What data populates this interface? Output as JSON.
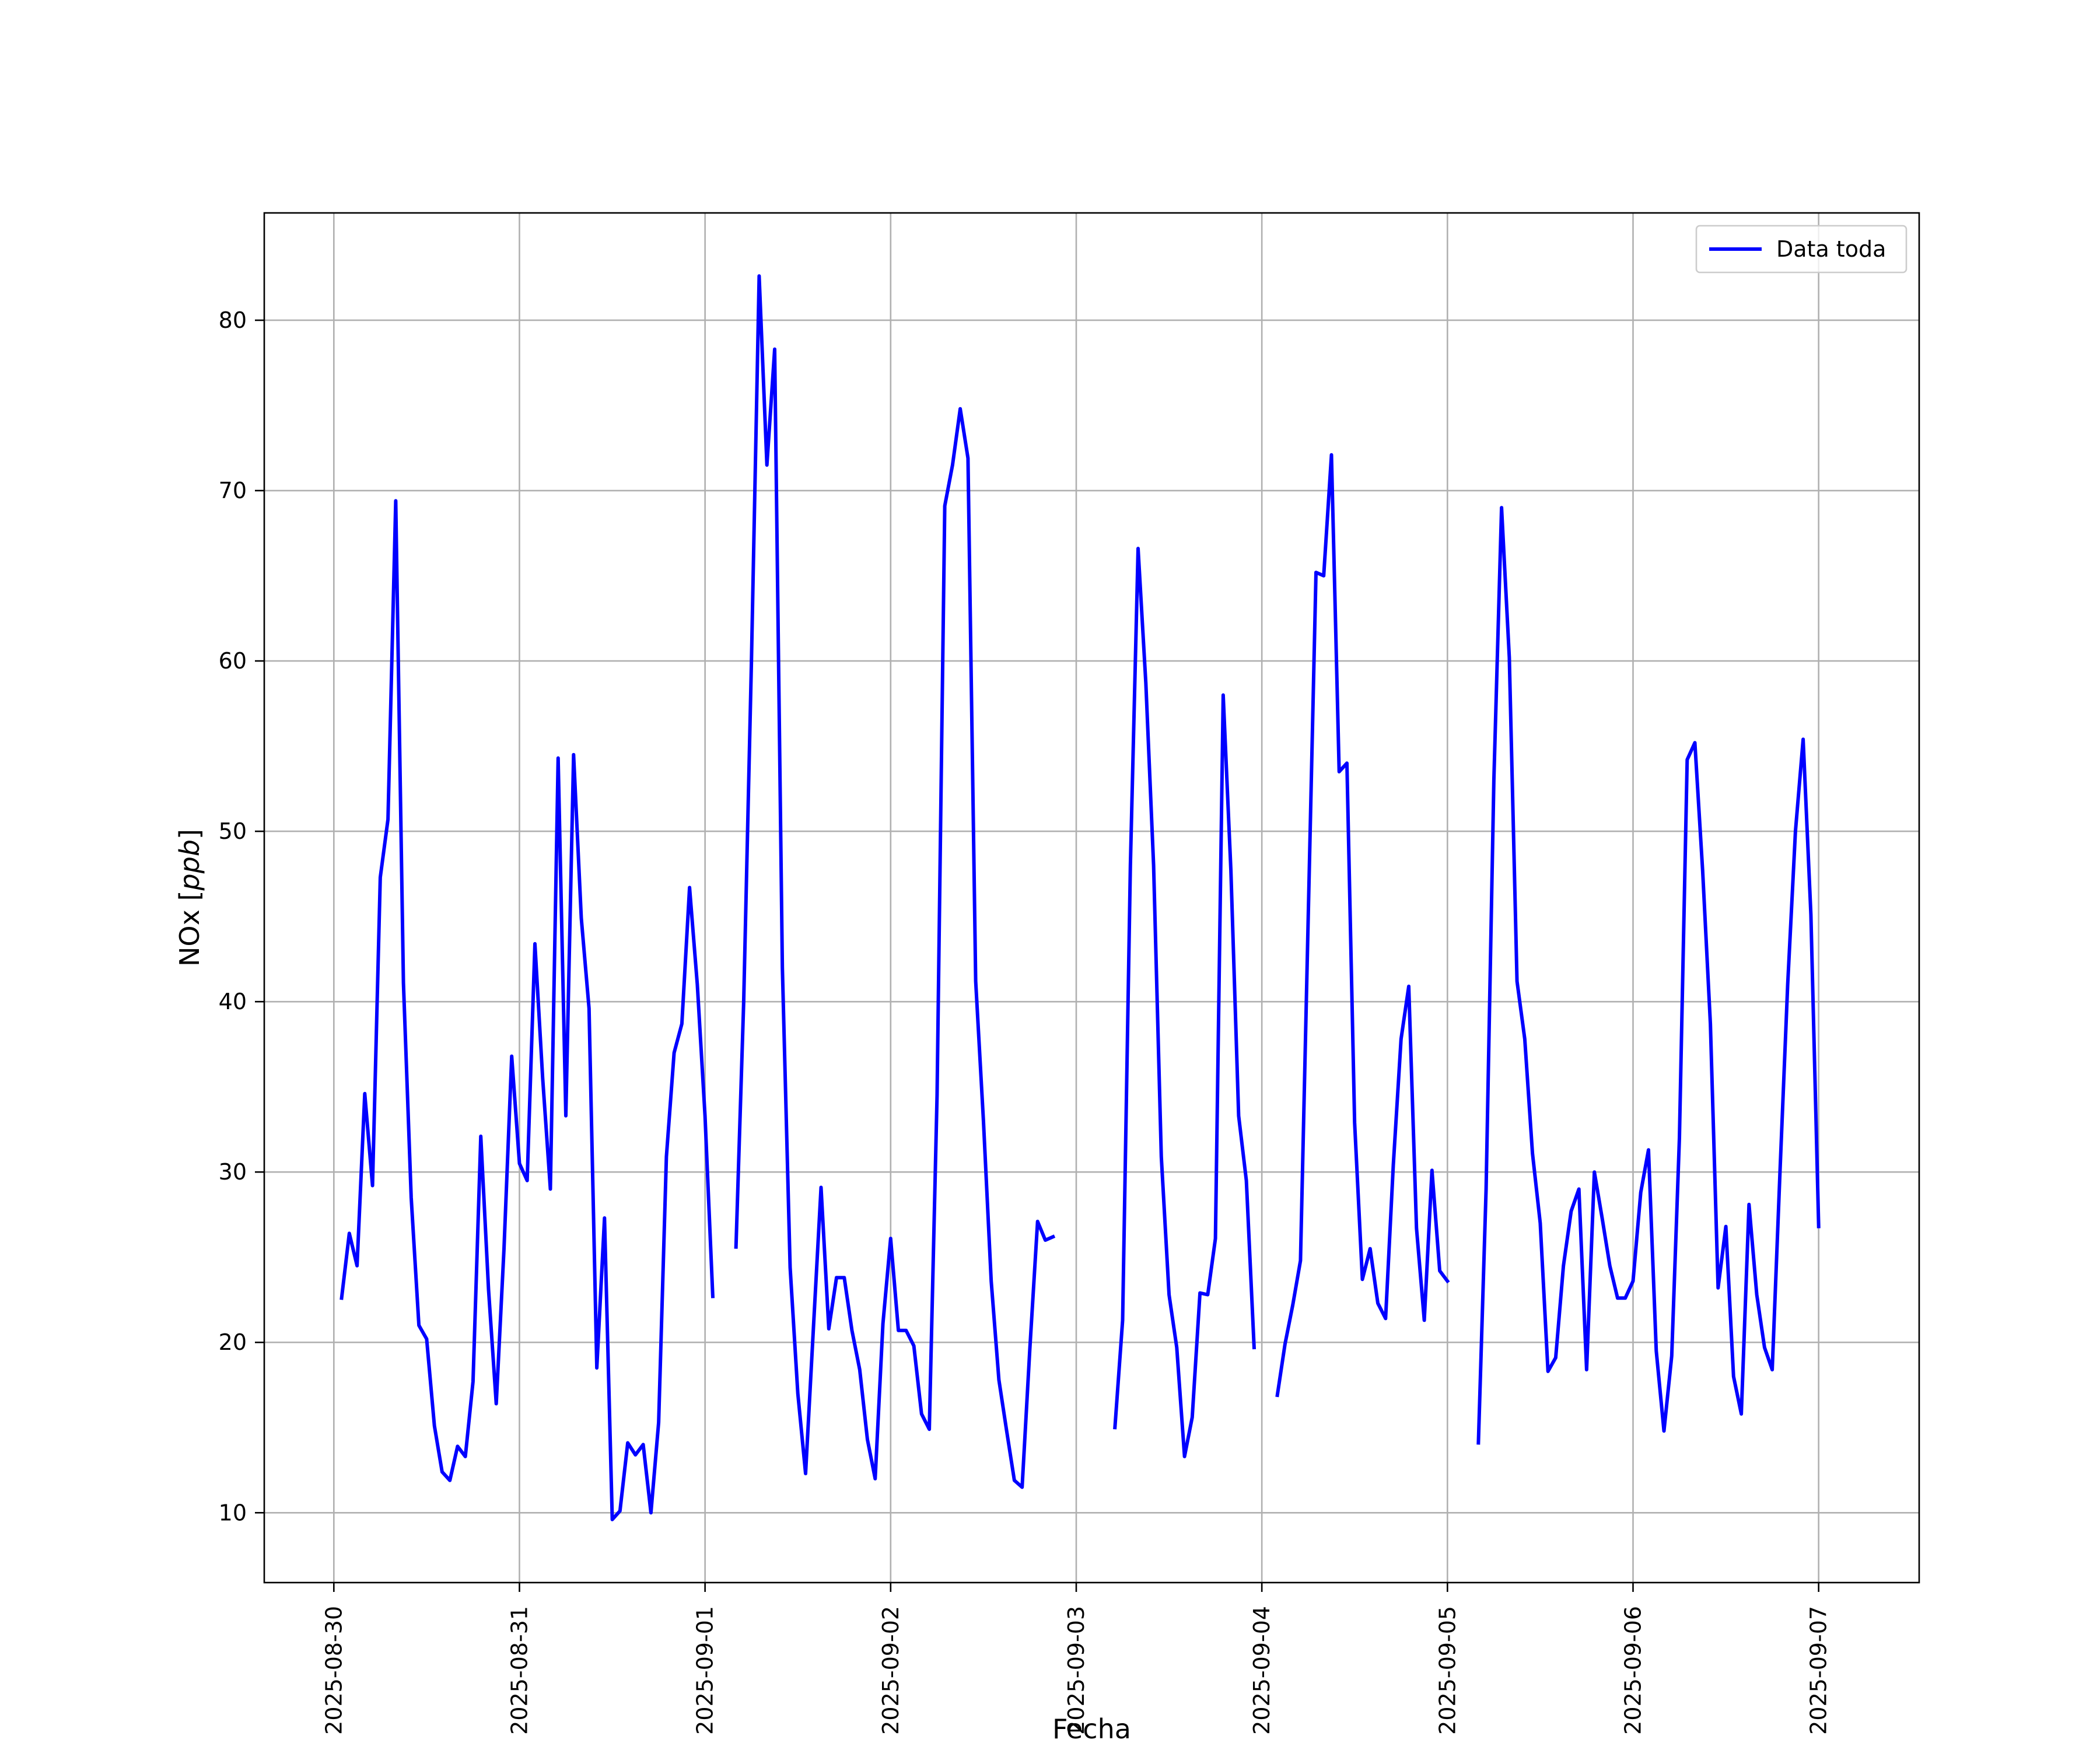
{
  "chart_data": {
    "type": "line",
    "xlabel": "Fecha",
    "ylabel": "NOx [ppb]",
    "ylabel_parts": {
      "main": "NOx [",
      "unit": "ppb",
      "end": "]"
    },
    "xlim": [
      "2025-08-29T15:00",
      "2025-09-07T13:00"
    ],
    "ylim": [
      5.9,
      86.3
    ],
    "x_ticks": [
      "2025-08-30",
      "2025-08-31",
      "2025-09-01",
      "2025-09-02",
      "2025-09-03",
      "2025-09-04",
      "2025-09-05",
      "2025-09-06",
      "2025-09-07"
    ],
    "y_ticks": [
      10,
      20,
      30,
      40,
      50,
      60,
      70,
      80
    ],
    "y_tick_labels": [
      "10",
      "20",
      "30",
      "40",
      "50",
      "60",
      "70",
      "80"
    ],
    "grid": true,
    "legend_position": "upper-right",
    "series": [
      {
        "name": "Data toda",
        "color": "#0000ff",
        "segments": [
          {
            "start": "2025-08-30T01:00",
            "step_hours": 1,
            "values": [
              22.6,
              26.4,
              24.5,
              34.6,
              29.2,
              47.3,
              50.7,
              69.4,
              41.1,
              28.5,
              21.0,
              20.2,
              15.1,
              12.4,
              11.9,
              13.9,
              13.3,
              17.7,
              32.1,
              23.1,
              16.4,
              25.5,
              36.8,
              30.5,
              29.5,
              43.4,
              35.5,
              29.0,
              54.3,
              33.3,
              54.5,
              44.9,
              39.6,
              18.5,
              27.3,
              9.6,
              10.1,
              14.1,
              13.4,
              14.0,
              10.0,
              15.3,
              30.9,
              37.0,
              38.7,
              46.7,
              41.0,
              33.3,
              22.7
            ]
          },
          {
            "start": "2025-09-01T04:00",
            "step_hours": 1,
            "values": [
              25.6,
              40.0,
              60.0,
              82.6,
              71.5,
              78.3,
              42.0,
              24.4,
              17.0,
              12.3,
              20.7,
              29.1,
              20.8,
              23.8,
              23.8,
              20.7,
              18.4,
              14.3,
              12.0,
              21.1,
              26.1,
              20.7,
              20.7,
              19.8,
              15.8,
              14.9,
              34.5,
              69.1,
              71.5,
              74.8,
              71.9,
              41.2,
              33.0,
              23.6,
              17.8,
              14.8,
              11.9,
              11.5,
              19.6,
              27.1,
              26.0,
              26.2
            ]
          },
          {
            "start": "2025-09-03T05:00",
            "step_hours": 1,
            "values": [
              15.0,
              21.3,
              48.0,
              66.6,
              58.7,
              48.0,
              30.9,
              22.8,
              19.7,
              13.3,
              15.6,
              22.9,
              22.8,
              26.1,
              58.0,
              47.7,
              33.3,
              29.5,
              19.7
            ]
          },
          {
            "start": "2025-09-04T02:00",
            "step_hours": 1,
            "values": [
              16.9,
              19.9,
              22.2,
              24.8,
              45.0,
              65.2,
              65.0,
              72.1,
              53.5,
              54.0,
              32.9,
              23.7,
              25.5,
              22.3,
              21.4,
              30.4,
              37.8,
              40.9,
              26.7,
              21.3,
              30.1,
              24.2,
              23.6
            ]
          },
          {
            "start": "2025-09-05T04:00",
            "step_hours": 1,
            "values": [
              14.1,
              29.0,
              53.0,
              69.0,
              60.2,
              41.2,
              37.8,
              31.1,
              27.0,
              18.3,
              19.1,
              24.5,
              27.7,
              29.0,
              18.4,
              30.0,
              27.3,
              24.5,
              22.6,
              22.6,
              23.6,
              28.8,
              31.3,
              19.5,
              14.8,
              19.2,
              32.0,
              54.2,
              55.2,
              47.7,
              38.7,
              23.2,
              26.8,
              18.0,
              15.8,
              28.1,
              22.8,
              19.7,
              18.4,
              30.0,
              41.0,
              50.0,
              55.4,
              45.1,
              26.8
            ]
          }
        ]
      }
    ]
  }
}
